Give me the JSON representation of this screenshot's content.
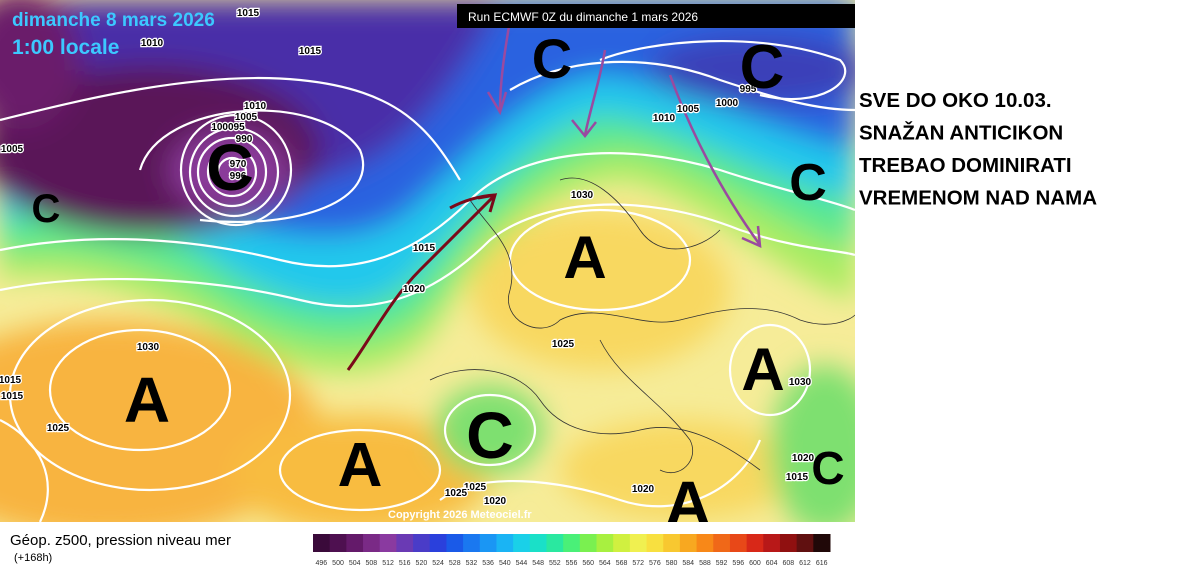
{
  "header": {
    "date": "dimanche 8 mars 2026",
    "time": "1:00 locale",
    "run": "Run ECMWF 0Z du dimanche 1 mars 2026"
  },
  "map": {
    "pressure_labels": [
      "1015",
      "1010",
      "1015",
      "1010",
      "1005",
      "100095",
      "990",
      "970",
      "996",
      "1005",
      "995",
      "1000",
      "1005",
      "1010",
      "1030",
      "1015",
      "1020",
      "1030",
      "1025",
      "1015",
      "1015",
      "1025",
      "1030",
      "1020",
      "1015",
      "1025",
      "1025",
      "1020",
      "1020"
    ],
    "centers": [
      "C",
      "C",
      "C",
      "C",
      "C",
      "C",
      "C",
      "A",
      "A",
      "A",
      "A",
      "A"
    ],
    "copyright": "Copyright 2026 Meteociel.fr"
  },
  "legend": {
    "title": "Géop. z500, pression niveau mer",
    "lead": "(+168h)",
    "labels": [
      496,
      500,
      504,
      508,
      512,
      516,
      520,
      524,
      528,
      532,
      536,
      540,
      544,
      548,
      552,
      556,
      560,
      564,
      568,
      572,
      576,
      580,
      584,
      588,
      592,
      596,
      600,
      604,
      608,
      612,
      616
    ],
    "colors": [
      "#3a0a3a",
      "#4e1050",
      "#641a6a",
      "#7a2a86",
      "#8a3aa0",
      "#6a3ab4",
      "#4a3cc8",
      "#2a40dc",
      "#1a5ae8",
      "#1a78f0",
      "#1a96f4",
      "#1ab4f4",
      "#1ad0e8",
      "#1ae0c8",
      "#2ae8a0",
      "#4af078",
      "#7af050",
      "#a8f040",
      "#d0f040",
      "#f0f050",
      "#f8e040",
      "#f8c830",
      "#f8a820",
      "#f88818",
      "#f06818",
      "#e84818",
      "#d82818",
      "#b81818",
      "#901010",
      "#601010",
      "#200808"
    ]
  },
  "annotation": {
    "lines": [
      "SVE DO OKO 10.03.",
      "SNAŽAN ANTICIKON",
      "TREBAO DOMINIRATI",
      "VREMENOM NAD NAMA"
    ]
  }
}
